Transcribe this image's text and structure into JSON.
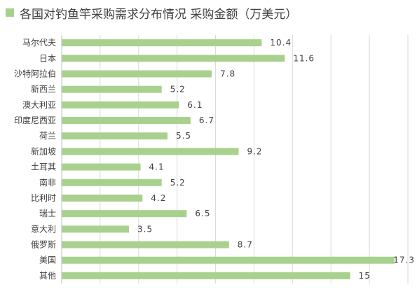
{
  "chart_data": {
    "type": "bar",
    "orientation": "horizontal",
    "title": "",
    "series": [
      {
        "name": "各国对钓鱼竿采购需求分布情况 采购金额（万美元）",
        "color": "#a9d18e",
        "values": [
          10.4,
          11.6,
          7.8,
          5.2,
          6.1,
          6.7,
          5.5,
          9.2,
          4.1,
          5.2,
          4.2,
          6.5,
          3.5,
          8.7,
          17.3,
          15
        ]
      }
    ],
    "categories": [
      "马尔代夫",
      "日本",
      "沙特阿拉伯",
      "新西兰",
      "澳大利亚",
      "印度尼西亚",
      "荷兰",
      "新加坡",
      "土耳其",
      "南非",
      "比利时",
      "瑞士",
      "意大利",
      "俄罗斯",
      "美国",
      "其他"
    ],
    "data_labels": [
      "10.4",
      "11.6",
      "7.8",
      "5.2",
      "6.1",
      "6.7",
      "5.5",
      "9.2",
      "4.1",
      "5.2",
      "4.2",
      "6.5",
      "3.5",
      "8.7",
      "17.3",
      "15"
    ],
    "xlim": [
      0,
      18
    ],
    "grid": true,
    "legend": "top-left",
    "xlabel": "",
    "ylabel": ""
  }
}
